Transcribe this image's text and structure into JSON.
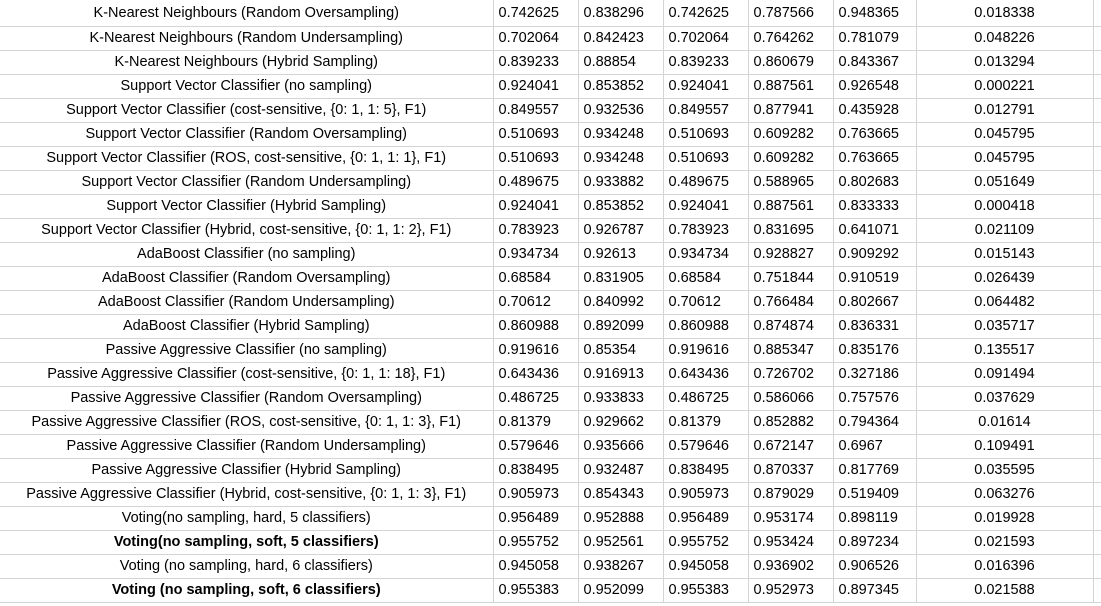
{
  "rows": [
    {
      "model": "K-Nearest Neighbours (Random Oversampling)",
      "bold": false,
      "values": [
        "0.742625",
        "0.838296",
        "0.742625",
        "0.787566",
        "0.948365",
        "0.018338"
      ]
    },
    {
      "model": "K-Nearest Neighbours (Random Undersampling)",
      "bold": false,
      "values": [
        "0.702064",
        "0.842423",
        "0.702064",
        "0.764262",
        "0.781079",
        "0.048226"
      ]
    },
    {
      "model": "K-Nearest Neighbours (Hybrid Sampling)",
      "bold": false,
      "values": [
        "0.839233",
        "0.88854",
        "0.839233",
        "0.860679",
        "0.843367",
        "0.013294"
      ]
    },
    {
      "model": "Support Vector Classifier (no sampling)",
      "bold": false,
      "values": [
        "0.924041",
        "0.853852",
        "0.924041",
        "0.887561",
        "0.926548",
        "0.000221"
      ]
    },
    {
      "model": "Support Vector Classifier (cost-sensitive, {0: 1, 1: 5}, F1)",
      "bold": false,
      "values": [
        "0.849557",
        "0.932536",
        "0.849557",
        "0.877941",
        "0.435928",
        "0.012791"
      ]
    },
    {
      "model": "Support Vector Classifier (Random Oversampling)",
      "bold": false,
      "values": [
        "0.510693",
        "0.934248",
        "0.510693",
        "0.609282",
        "0.763665",
        "0.045795"
      ]
    },
    {
      "model": "Support Vector Classifier (ROS, cost-sensitive, {0: 1, 1: 1}, F1)",
      "bold": false,
      "values": [
        "0.510693",
        "0.934248",
        "0.510693",
        "0.609282",
        "0.763665",
        "0.045795"
      ]
    },
    {
      "model": "Support Vector Classifier (Random Undersampling)",
      "bold": false,
      "values": [
        "0.489675",
        "0.933882",
        "0.489675",
        "0.588965",
        "0.802683",
        "0.051649"
      ]
    },
    {
      "model": "Support Vector Classifier (Hybrid Sampling)",
      "bold": false,
      "values": [
        "0.924041",
        "0.853852",
        "0.924041",
        "0.887561",
        "0.833333",
        "0.000418"
      ]
    },
    {
      "model": "Support Vector Classifier (Hybrid, cost-sensitive, {0: 1, 1: 2}, F1)",
      "bold": false,
      "values": [
        "0.783923",
        "0.926787",
        "0.783923",
        "0.831695",
        "0.641071",
        "0.021109"
      ]
    },
    {
      "model": "AdaBoost Classifier (no sampling)",
      "bold": false,
      "values": [
        "0.934734",
        "0.92613",
        "0.934734",
        "0.928827",
        "0.909292",
        "0.015143"
      ]
    },
    {
      "model": "AdaBoost Classifier (Random Oversampling)",
      "bold": false,
      "values": [
        "0.68584",
        "0.831905",
        "0.68584",
        "0.751844",
        "0.910519",
        "0.026439"
      ]
    },
    {
      "model": "AdaBoost Classifier (Random Undersampling)",
      "bold": false,
      "values": [
        "0.70612",
        "0.840992",
        "0.70612",
        "0.766484",
        "0.802667",
        "0.064482"
      ]
    },
    {
      "model": "AdaBoost Classifier (Hybrid Sampling)",
      "bold": false,
      "values": [
        "0.860988",
        "0.892099",
        "0.860988",
        "0.874874",
        "0.836331",
        "0.035717"
      ]
    },
    {
      "model": "Passive Aggressive Classifier (no sampling)",
      "bold": false,
      "values": [
        "0.919616",
        "0.85354",
        "0.919616",
        "0.885347",
        "0.835176",
        "0.135517"
      ]
    },
    {
      "model": "Passive Aggressive Classifier (cost-sensitive, {0: 1, 1: 18}, F1)",
      "bold": false,
      "values": [
        "0.643436",
        "0.916913",
        "0.643436",
        "0.726702",
        "0.327186",
        "0.091494"
      ]
    },
    {
      "model": "Passive Aggressive Classifier (Random Oversampling)",
      "bold": false,
      "values": [
        "0.486725",
        "0.933833",
        "0.486725",
        "0.586066",
        "0.757576",
        "0.037629"
      ]
    },
    {
      "model": "Passive Aggressive Classifier (ROS, cost-sensitive, {0: 1, 1: 3}, F1)",
      "bold": false,
      "values": [
        "0.81379",
        "0.929662",
        "0.81379",
        "0.852882",
        "0.794364",
        "0.01614"
      ]
    },
    {
      "model": "Passive Aggressive Classifier (Random Undersampling)",
      "bold": false,
      "values": [
        "0.579646",
        "0.935666",
        "0.579646",
        "0.672147",
        "0.6967",
        "0.109491"
      ]
    },
    {
      "model": "Passive Aggressive Classifier (Hybrid Sampling)",
      "bold": false,
      "values": [
        "0.838495",
        "0.932487",
        "0.838495",
        "0.870337",
        "0.817769",
        "0.035595"
      ]
    },
    {
      "model": "Passive Aggressive Classifier (Hybrid, cost-sensitive, {0: 1, 1: 3}, F1)",
      "bold": false,
      "values": [
        "0.905973",
        "0.854343",
        "0.905973",
        "0.879029",
        "0.519409",
        "0.063276"
      ]
    },
    {
      "model": "Voting(no sampling, hard, 5 classifiers)",
      "bold": false,
      "values": [
        "0.956489",
        "0.952888",
        "0.956489",
        "0.953174",
        "0.898119",
        "0.019928"
      ]
    },
    {
      "model": "Voting(no sampling, soft, 5 classifiers)",
      "bold": true,
      "values": [
        "0.955752",
        "0.952561",
        "0.955752",
        "0.953424",
        "0.897234",
        "0.021593"
      ]
    },
    {
      "model": "Voting (no sampling, hard, 6 classifiers)",
      "bold": false,
      "values": [
        "0.945058",
        "0.938267",
        "0.945058",
        "0.936902",
        "0.906526",
        "0.016396"
      ]
    },
    {
      "model": "Voting (no sampling, soft, 6 classifiers)",
      "bold": true,
      "values": [
        "0.955383",
        "0.952099",
        "0.955383",
        "0.952973",
        "0.897345",
        "0.021588"
      ]
    }
  ]
}
